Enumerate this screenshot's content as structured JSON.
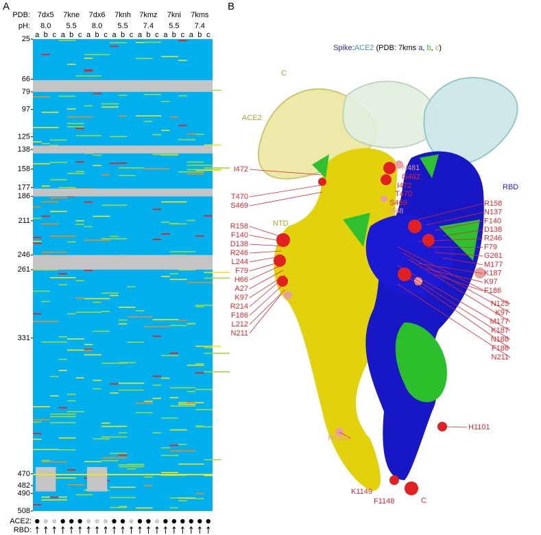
{
  "panel_a": {
    "label": "A",
    "pdb_label": "PDB:",
    "ph_label": "pH:",
    "pdb": [
      "7dx5",
      "7kne",
      "7dx6",
      "7knh",
      "7kmz",
      "7kni",
      "7kms"
    ],
    "ph": [
      "8.0",
      "5.5",
      "8.0",
      "5.5",
      "7.4",
      "5.5",
      "7.4"
    ],
    "chains": [
      "a",
      "b",
      "c"
    ],
    "residues": [
      25,
      66,
      79,
      97,
      125,
      138,
      158,
      177,
      186,
      211,
      246,
      261,
      331,
      470,
      482,
      490,
      508
    ],
    "residue_range": [
      25,
      508
    ],
    "ace2_label": "ACE2:",
    "rbd_label": "RBD:"
  },
  "panel_b": {
    "label": "B",
    "title": [
      "Spike",
      ":",
      "ACE2",
      " (PDB: 7kms ",
      "a",
      ", ",
      "b",
      ", ",
      "c",
      ")"
    ],
    "regions": [
      "C",
      "ACE2",
      "NTD",
      "RBD"
    ],
    "labels": [
      "I472",
      "T470",
      "S469",
      "R158",
      "F140",
      "D138",
      "R246",
      "L244",
      "F79",
      "H66",
      "A27",
      "K97",
      "R214",
      "F186",
      "L212",
      "N211",
      "N481",
      "G482",
      "I472",
      "T470",
      "S469",
      "I468",
      "R158",
      "N137",
      "F140",
      "D138",
      "R246",
      "F79",
      "G261",
      "M177",
      "K187",
      "K97",
      "F186",
      "N125",
      "K97",
      "M177",
      "K187",
      "N188",
      "F186",
      "N211",
      "H1101",
      "H1101",
      "K1149",
      "F1148",
      "C"
    ]
  }
}
